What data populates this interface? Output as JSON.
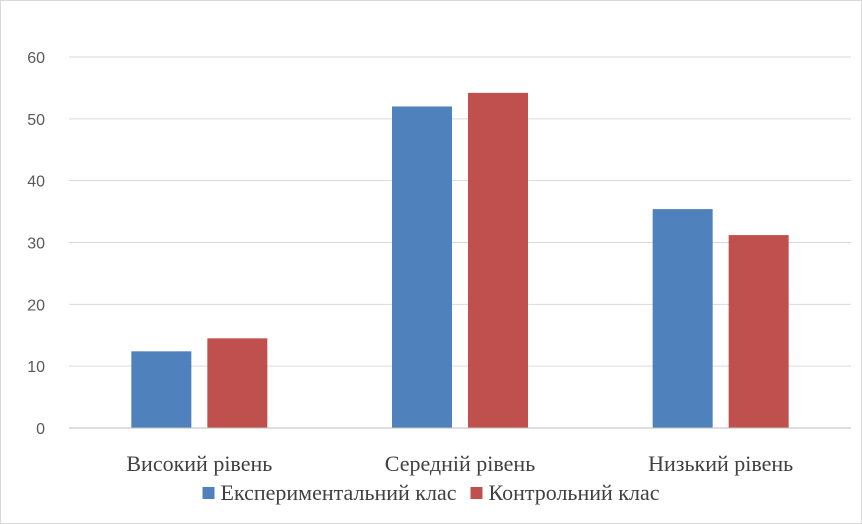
{
  "chart_data": {
    "type": "bar",
    "title": "",
    "xlabel": "",
    "ylabel": "",
    "categories": [
      "Високий рівень",
      "Середній рівень",
      "Низький рівень"
    ],
    "series": [
      {
        "name": "Експериментальний клас",
        "values": [
          12.4,
          52.0,
          35.4
        ],
        "color": "#4f81bd"
      },
      {
        "name": "Контрольний клас",
        "values": [
          14.5,
          54.2,
          31.2
        ],
        "color": "#c0504d"
      }
    ],
    "ylim": [
      0,
      60
    ],
    "yticks": [
      "0",
      "10",
      "20",
      "30",
      "40",
      "50",
      "60"
    ],
    "grid": true,
    "legend_position": "bottom"
  }
}
